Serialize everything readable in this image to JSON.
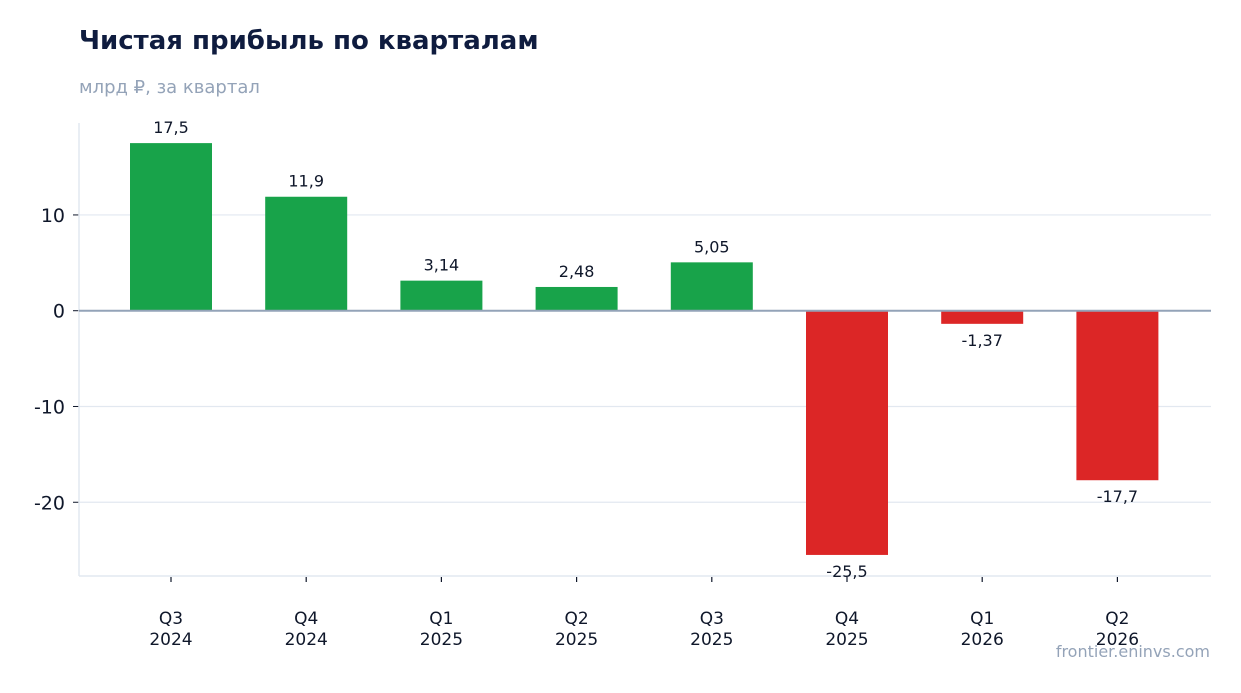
{
  "title": "Чистая прибыль по кварталам",
  "subtitle": "млрд ₽, за квартал",
  "source": "frontier.eninvs.com",
  "colors": {
    "positive": "#18a34a",
    "negative": "#dc2626",
    "zero_line": "#94a3b8",
    "grid": "#e2e8f0",
    "text": "#0f172a"
  },
  "chart_data": {
    "type": "bar",
    "categories": [
      [
        "Q3",
        "2024"
      ],
      [
        "Q4",
        "2024"
      ],
      [
        "Q1",
        "2025"
      ],
      [
        "Q2",
        "2025"
      ],
      [
        "Q3",
        "2025"
      ],
      [
        "Q4",
        "2025"
      ],
      [
        "Q1",
        "2026"
      ],
      [
        "Q2",
        "2026"
      ]
    ],
    "values": [
      17.5,
      11.9,
      3.14,
      2.48,
      5.05,
      -25.5,
      -1.37,
      -17.7
    ],
    "data_labels": [
      "17,5",
      "11,9",
      "3,14",
      "2,48",
      "5,05",
      "-25,5",
      "-1,37",
      "-17,7"
    ],
    "ylim": [
      -27.7,
      19.6
    ],
    "yticks": [
      10,
      0,
      -10,
      -20
    ],
    "ytick_labels": [
      "10",
      "0",
      "-10",
      "-20"
    ],
    "grid": true,
    "legend": "none"
  }
}
